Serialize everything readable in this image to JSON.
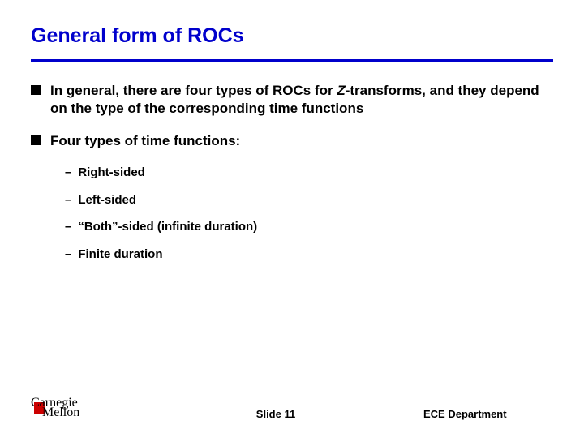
{
  "title": "General form of ROCs",
  "colors": {
    "accent": "#0000cc",
    "text": "#000000",
    "logo_red": "#cc0000",
    "background": "#ffffff"
  },
  "bullets": [
    {
      "prefix": "In general, there are four types of ROCs for ",
      "italic": "Z",
      "suffix": "-transforms, and they depend on the type of the corresponding time functions"
    },
    {
      "prefix": "Four types of time functions:",
      "italic": "",
      "suffix": ""
    }
  ],
  "subitems": [
    "Right-sided",
    "Left-sided",
    "“Both”-sided (infinite duration)",
    "Finite duration"
  ],
  "footer": {
    "logo_top": "Carnegie",
    "logo_bottom": "Mellon",
    "center": "Slide 11",
    "right": "ECE Department"
  }
}
